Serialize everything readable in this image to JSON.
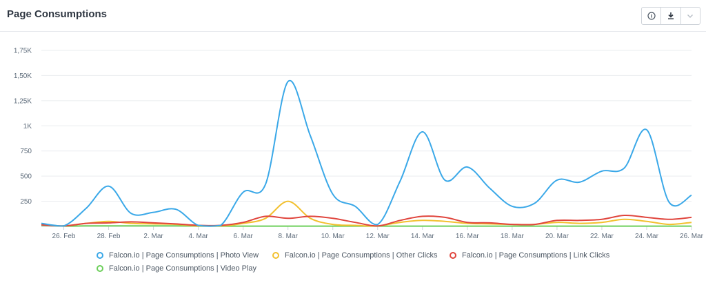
{
  "header": {
    "title": "Page Consumptions"
  },
  "toolbar": {
    "info_icon": "info-circle-icon",
    "download_icon": "download-icon",
    "menu_icon": "chevron-down-icon"
  },
  "colors": {
    "photo": "#3aa8e8",
    "other": "#f2c02e",
    "link": "#e0453d",
    "video": "#6ccf5a",
    "grid": "#e9ecef",
    "axis": "#cfd4da"
  },
  "chart_data": {
    "type": "line",
    "title": "Page Consumptions",
    "xlabel": "",
    "ylabel": "",
    "ylim": [
      0,
      1750
    ],
    "yticks": [
      0,
      250,
      500,
      750,
      1000,
      1250,
      1500,
      1750
    ],
    "ytick_labels": [
      "",
      "250",
      "500",
      "750",
      "1K",
      "1,25K",
      "1,50K",
      "1,75K"
    ],
    "x": [
      "25. Feb",
      "26. Feb",
      "27. Feb",
      "28. Feb",
      "1. Mar",
      "2. Mar",
      "3. Mar",
      "4. Mar",
      "5. Mar",
      "6. Mar",
      "7. Mar",
      "8. Mar",
      "9. Mar",
      "10. Mar",
      "11. Mar",
      "12. Mar",
      "13. Mar",
      "14. Mar",
      "15. Mar",
      "16. Mar",
      "17. Mar",
      "18. Mar",
      "19. Mar",
      "20. Mar",
      "21. Mar",
      "22. Mar",
      "23. Mar",
      "24. Mar",
      "25. Mar",
      "26. Mar"
    ],
    "xtick_labels": [
      "26. Feb",
      "28. Feb",
      "2. Mar",
      "4. Mar",
      "6. Mar",
      "8. Mar",
      "10. Mar",
      "12. Mar",
      "14. Mar",
      "16. Mar",
      "18. Mar",
      "20. Mar",
      "22. Mar",
      "24. Mar",
      "26. Mar"
    ],
    "series": [
      {
        "name": "Falcon.io | Page Consumptions | Photo View",
        "color": "#3aa8e8",
        "values": [
          30,
          5,
          180,
          400,
          130,
          140,
          170,
          10,
          10,
          340,
          420,
          1440,
          900,
          320,
          200,
          20,
          450,
          940,
          460,
          590,
          380,
          200,
          230,
          460,
          440,
          550,
          580,
          960,
          240,
          310
        ]
      },
      {
        "name": "Falcon.io | Page Consumptions | Other Clicks",
        "color": "#f2c02e",
        "values": [
          20,
          5,
          30,
          50,
          30,
          25,
          20,
          5,
          5,
          30,
          80,
          250,
          80,
          20,
          10,
          5,
          40,
          60,
          50,
          30,
          25,
          20,
          20,
          40,
          30,
          40,
          70,
          50,
          20,
          40
        ]
      },
      {
        "name": "Falcon.io | Page Consumptions | Link Clicks",
        "color": "#e0453d",
        "values": [
          15,
          5,
          30,
          35,
          45,
          35,
          25,
          10,
          10,
          40,
          100,
          80,
          100,
          80,
          40,
          5,
          60,
          100,
          90,
          40,
          35,
          20,
          20,
          60,
          60,
          70,
          110,
          90,
          70,
          90
        ]
      },
      {
        "name": "Falcon.io | Page Consumptions | Video Play",
        "color": "#6ccf5a",
        "values": [
          10,
          3,
          5,
          5,
          5,
          5,
          5,
          3,
          3,
          3,
          3,
          3,
          3,
          3,
          3,
          3,
          3,
          3,
          3,
          3,
          3,
          3,
          3,
          3,
          3,
          3,
          3,
          3,
          3,
          3
        ]
      }
    ],
    "grid": true,
    "legend_position": "bottom"
  }
}
